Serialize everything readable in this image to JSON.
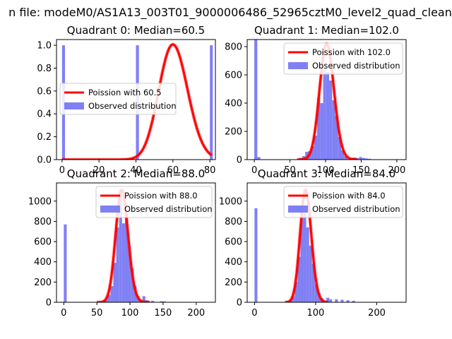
{
  "figure": {
    "suptitle": "n file: modeM0/AS1A13_003T01_9000006486_52965cztM0_level2_quad_clean"
  },
  "colors": {
    "fit_line": "#ff0000",
    "histogram": "#8080f5",
    "axes": "#000000",
    "background": "#ffffff"
  },
  "chart_data": [
    {
      "type": "bar",
      "title": "Quadrant 0: Median=60.5",
      "xlim": [
        -3,
        83
      ],
      "ylim": [
        0,
        1.05
      ],
      "xticks": [
        0,
        20,
        40,
        60,
        80
      ],
      "yticks": [
        0.0,
        0.2,
        0.4,
        0.6,
        0.8,
        1.0
      ],
      "xtick_labels": [
        "0",
        "20",
        "40",
        "60",
        "80"
      ],
      "ytick_labels": [
        "0.0",
        "0.2",
        "0.4",
        "0.6",
        "0.8",
        "1.0"
      ],
      "legend": {
        "placement": "center-left",
        "entries": [
          "Poission with 60.5",
          "Observed distribution"
        ]
      },
      "series": [
        {
          "name": "Observed distribution",
          "kind": "histogram",
          "bin_width": 1.6,
          "bins": [
            [
              0,
              1.0
            ],
            [
              40,
              1.0
            ],
            [
              80,
              1.0
            ]
          ]
        },
        {
          "name": "Poission with 60.5",
          "kind": "line",
          "mean": 60.5,
          "normalize": true,
          "x_range": [
            0,
            81
          ]
        }
      ]
    },
    {
      "type": "bar",
      "title": "Quadrant 1: Median=102.0",
      "xlim": [
        -10,
        213
      ],
      "ylim": [
        0,
        850
      ],
      "xticks": [
        0,
        50,
        100,
        150,
        200
      ],
      "yticks": [
        0,
        200,
        400,
        600,
        800
      ],
      "xtick_labels": [
        "0",
        "50",
        "100",
        "150",
        "200"
      ],
      "ytick_labels": [
        "0",
        "200",
        "400",
        "600",
        "800"
      ],
      "legend": {
        "placement": "upper-right",
        "entries": [
          "Poission with 102.0",
          "Observed distribution"
        ]
      },
      "series": [
        {
          "name": "Observed distribution",
          "kind": "histogram",
          "bin_width": 4.2,
          "bins": [
            [
              0,
              850
            ],
            [
              4.2,
              18
            ],
            [
              63,
              12
            ],
            [
              67.2,
              25
            ],
            [
              71.4,
              55
            ],
            [
              75.6,
              60
            ],
            [
              79.8,
              95
            ],
            [
              84,
              170
            ],
            [
              88.2,
              440
            ],
            [
              92.4,
              400
            ],
            [
              96.6,
              650
            ],
            [
              100.8,
              620
            ],
            [
              105,
              560
            ],
            [
              109.2,
              420
            ],
            [
              113.4,
              310
            ],
            [
              117.6,
              160
            ],
            [
              121.8,
              65
            ],
            [
              126,
              25
            ],
            [
              134.4,
              12
            ],
            [
              138.6,
              15
            ],
            [
              142.8,
              10
            ],
            [
              147,
              18
            ],
            [
              151.2,
              12
            ],
            [
              155.4,
              8
            ],
            [
              159.6,
              6
            ]
          ]
        },
        {
          "name": "Poission with 102.0",
          "kind": "line",
          "mean": 102.0,
          "scale": 820,
          "x_range": [
            60,
            145
          ]
        }
      ]
    },
    {
      "type": "bar",
      "title": "Quadrant 2: Median=88.0",
      "xlim": [
        -11,
        229
      ],
      "ylim": [
        0,
        1180
      ],
      "xticks": [
        0,
        50,
        100,
        150,
        200
      ],
      "yticks": [
        0,
        200,
        400,
        600,
        800,
        1000
      ],
      "xtick_labels": [
        "0",
        "50",
        "100",
        "150",
        "200"
      ],
      "ytick_labels": [
        "0",
        "200",
        "400",
        "600",
        "800",
        "1000"
      ],
      "legend": {
        "placement": "upper-right",
        "entries": [
          "Poission with 88.0",
          "Observed distribution"
        ]
      },
      "series": [
        {
          "name": "Observed distribution",
          "kind": "histogram",
          "bin_width": 4.4,
          "bins": [
            [
              0,
              770
            ],
            [
              61.6,
              25
            ],
            [
              66,
              70
            ],
            [
              70.4,
              160
            ],
            [
              74.8,
              390
            ],
            [
              79.2,
              740
            ],
            [
              83.6,
              1100
            ],
            [
              88,
              780
            ],
            [
              92.4,
              880
            ],
            [
              96.8,
              560
            ],
            [
              101.2,
              330
            ],
            [
              105.6,
              160
            ],
            [
              110,
              60
            ],
            [
              118.8,
              60
            ],
            [
              123.2,
              20
            ],
            [
              132,
              15
            ],
            [
              145.2,
              10
            ],
            [
              149.6,
              8
            ]
          ]
        },
        {
          "name": "Poission with 88.0",
          "kind": "line",
          "mean": 88.0,
          "scale": 1110,
          "x_range": [
            50,
            130
          ]
        }
      ]
    },
    {
      "type": "bar",
      "title": "Quadrant 3: Median=84.0",
      "xlim": [
        -12,
        248
      ],
      "ylim": [
        0,
        1180
      ],
      "xticks": [
        0,
        100,
        200
      ],
      "yticks": [
        0,
        200,
        400,
        600,
        800,
        1000
      ],
      "xtick_labels": [
        "0",
        "100",
        "200"
      ],
      "ytick_labels": [
        "0",
        "200",
        "400",
        "600",
        "800",
        "1000"
      ],
      "legend": {
        "placement": "upper-right",
        "entries": [
          "Poission with 84.0",
          "Observed distribution"
        ]
      },
      "series": [
        {
          "name": "Observed distribution",
          "kind": "histogram",
          "bin_width": 4.7,
          "bins": [
            [
              0,
              930
            ],
            [
              56.4,
              15
            ],
            [
              61.1,
              60
            ],
            [
              65.8,
              200
            ],
            [
              70.5,
              450
            ],
            [
              75.2,
              850
            ],
            [
              79.9,
              900
            ],
            [
              84.6,
              740
            ],
            [
              89.3,
              560
            ],
            [
              94,
              380
            ],
            [
              98.7,
              180
            ],
            [
              103.4,
              90
            ],
            [
              108.1,
              40
            ],
            [
              117.5,
              45
            ],
            [
              122.2,
              30
            ],
            [
              131.6,
              30
            ],
            [
              141,
              25
            ],
            [
              150.4,
              20
            ],
            [
              159.8,
              15
            ]
          ]
        },
        {
          "name": "Poission with 84.0",
          "kind": "line",
          "mean": 84.0,
          "scale": 1110,
          "x_range": [
            50,
            120
          ]
        }
      ]
    }
  ]
}
